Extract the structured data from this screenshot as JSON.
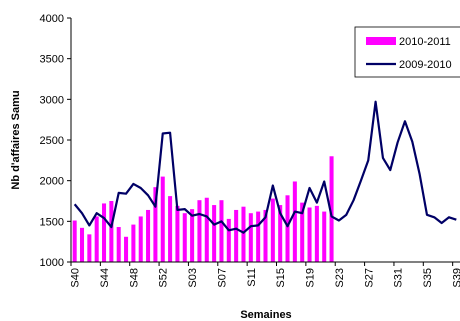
{
  "chart_data": {
    "type": "bar",
    "xlabel": "Semaines",
    "ylabel": "Nb d'affaires Samu",
    "ylim": [
      1000,
      4000
    ],
    "yticks": [
      1000,
      1500,
      2000,
      2500,
      3000,
      3500,
      4000
    ],
    "grid": false,
    "legend_position": "top-right",
    "weeks": [
      "S40",
      "S41",
      "S42",
      "S43",
      "S44",
      "S45",
      "S46",
      "S47",
      "S48",
      "S49",
      "S50",
      "S51",
      "S52",
      "S53",
      "S01",
      "S02",
      "S03",
      "S04",
      "S05",
      "S06",
      "S07",
      "S08",
      "S09",
      "S10",
      "S11",
      "S12",
      "S13",
      "S14",
      "S15",
      "S16",
      "S17",
      "S18",
      "S19",
      "S20",
      "S21",
      "S22",
      "S23",
      "S24",
      "S25",
      "S26",
      "S27",
      "S28",
      "S29",
      "S30",
      "S31",
      "S32",
      "S33",
      "S34",
      "S35",
      "S36",
      "S37",
      "S38",
      "S39"
    ],
    "x_tick_labels": [
      "S40",
      "S44",
      "S48",
      "S52",
      "S03",
      "S07",
      "S11",
      "S15",
      "S19",
      "S23",
      "S27",
      "S31",
      "S35",
      "S39"
    ],
    "series": [
      {
        "name": "2010-2011",
        "kind": "bar",
        "color": "#ff00ff",
        "values": [
          1510,
          1420,
          1340,
          1560,
          1720,
          1750,
          1430,
          1310,
          1460,
          1560,
          1640,
          1920,
          2050,
          1810,
          1690,
          1600,
          1650,
          1760,
          1790,
          1700,
          1760,
          1530,
          1640,
          1680,
          1600,
          1620,
          1640,
          1780,
          1700,
          1820,
          1990,
          1730,
          1670,
          1690,
          1620,
          2300
        ]
      },
      {
        "name": "2009-2010",
        "kind": "line",
        "color": "#000066",
        "values": [
          1710,
          1600,
          1450,
          1600,
          1540,
          1430,
          1850,
          1840,
          1960,
          1910,
          1820,
          1680,
          2580,
          2590,
          1640,
          1650,
          1570,
          1590,
          1560,
          1460,
          1500,
          1390,
          1410,
          1360,
          1440,
          1450,
          1550,
          1940,
          1600,
          1440,
          1620,
          1600,
          1910,
          1730,
          1990,
          1560,
          1510,
          1580,
          1760,
          2000,
          2250,
          2970,
          2280,
          2130,
          2470,
          2730,
          2480,
          2080,
          1580,
          1550,
          1480,
          1550,
          1520
        ]
      }
    ]
  }
}
